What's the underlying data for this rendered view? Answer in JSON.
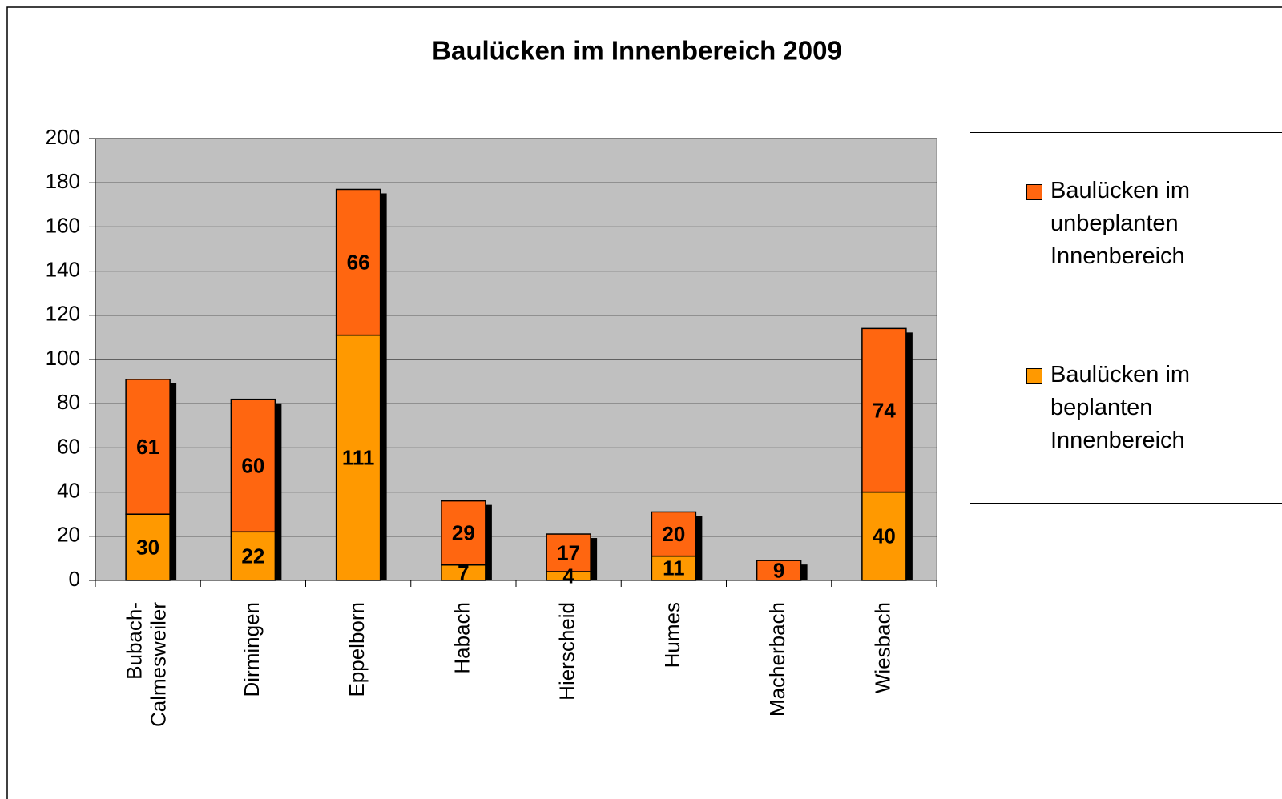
{
  "chart_data": {
    "type": "stacked_bar",
    "title": "Baulücken im Innenbereich 2009",
    "categories": [
      "Bubach-Calmesweiler",
      "Dirmingen",
      "Eppelborn",
      "Habach",
      "Hierscheid",
      "Humes",
      "Macherbach",
      "Wiesbach"
    ],
    "series": [
      {
        "name": "Baulücken im beplanten Innenbereich",
        "color": "#ff9900",
        "values": [
          30,
          22,
          111,
          7,
          4,
          11,
          null,
          40
        ]
      },
      {
        "name": "Baulücken im unbeplanten Innenbereich",
        "color": "#ff6610",
        "values": [
          61,
          60,
          66,
          29,
          17,
          20,
          9,
          74
        ]
      }
    ],
    "ylim": [
      0,
      200
    ],
    "yticks": [
      0,
      20,
      40,
      60,
      80,
      100,
      120,
      140,
      160,
      180,
      200
    ],
    "grid": true,
    "legend": "right"
  }
}
